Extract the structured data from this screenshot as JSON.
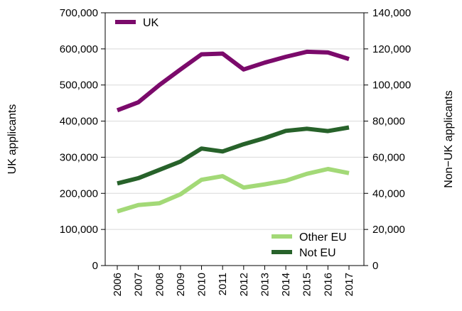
{
  "chart_data": {
    "type": "line",
    "x": [
      "2006",
      "2007",
      "2008",
      "2009",
      "2010",
      "2011",
      "2012",
      "2013",
      "2014",
      "2015",
      "2016",
      "2017"
    ],
    "ylabel_left": "UK applicants",
    "ylabel_right": "Non−UK applicants",
    "ylim_left": [
      0,
      700000
    ],
    "ylim_right": [
      0,
      140000
    ],
    "yticks_left": [
      "0",
      "100,000",
      "200,000",
      "300,000",
      "400,000",
      "500,000",
      "600,000",
      "700,000"
    ],
    "yticks_right": [
      "0",
      "20,000",
      "40,000",
      "60,000",
      "80,000",
      "100,000",
      "120,000",
      "140,000"
    ],
    "grid": true,
    "series": [
      {
        "name": "UK",
        "axis": "left",
        "color": "#7b0a6b",
        "values": [
          430000,
          452000,
          500000,
          543000,
          585000,
          587000,
          543000,
          562000,
          578000,
          592000,
          590000,
          572000
        ]
      },
      {
        "name": "Other EU",
        "axis": "right",
        "color": "#a3d977",
        "values": [
          30000,
          33500,
          34500,
          39500,
          47500,
          49500,
          43200,
          45000,
          47000,
          50800,
          53500,
          51200
        ]
      },
      {
        "name": "Not EU",
        "axis": "right",
        "color": "#27622a",
        "values": [
          45500,
          48400,
          53000,
          57600,
          64800,
          63200,
          67200,
          70600,
          74600,
          75800,
          74500,
          76500
        ]
      }
    ],
    "legend": [
      {
        "position": "top-left",
        "items": [
          "UK"
        ]
      },
      {
        "position": "bottom-right",
        "items": [
          "Other EU",
          "Not EU"
        ]
      }
    ]
  }
}
